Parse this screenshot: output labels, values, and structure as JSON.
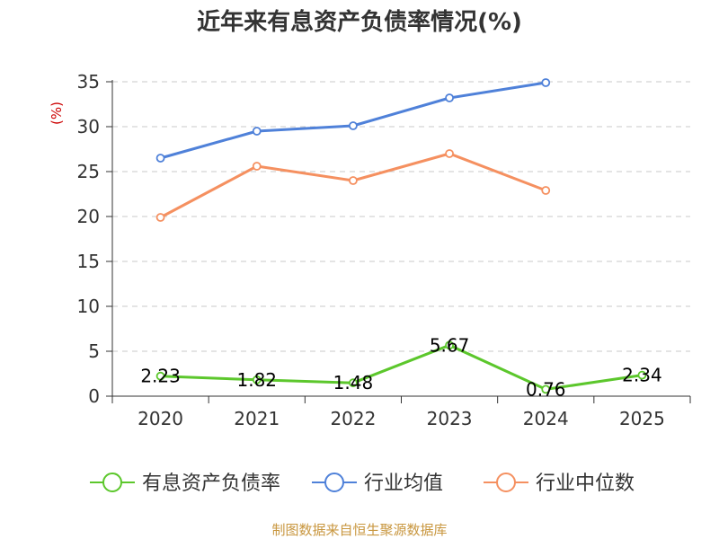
{
  "chart_data": {
    "type": "line",
    "title": "近年来有息资产负债率情况(%)",
    "ylabel": "(%)",
    "xlabel": "",
    "categories": [
      "2020",
      "2021",
      "2022",
      "2023",
      "2024",
      "2025"
    ],
    "ylim": [
      0,
      35
    ],
    "yticks": [
      0,
      5,
      10,
      15,
      20,
      25,
      30,
      35
    ],
    "grid": true,
    "legend_position": "bottom",
    "series": [
      {
        "name": "有息资产负债率",
        "color": "#5cc72c",
        "values": [
          2.23,
          1.82,
          1.48,
          5.67,
          0.76,
          2.34
        ],
        "data_labels": [
          "2.23",
          "1.82",
          "1.48",
          "5.67",
          "0.76",
          "2.34"
        ]
      },
      {
        "name": "行业均值",
        "color": "#4f81d9",
        "values": [
          26.5,
          29.5,
          30.1,
          33.2,
          34.9,
          null
        ]
      },
      {
        "name": "行业中位数",
        "color": "#f59060",
        "values": [
          19.9,
          25.6,
          24.0,
          27.0,
          22.9,
          null
        ]
      }
    ]
  },
  "source": "制图数据来自恒生聚源数据库"
}
